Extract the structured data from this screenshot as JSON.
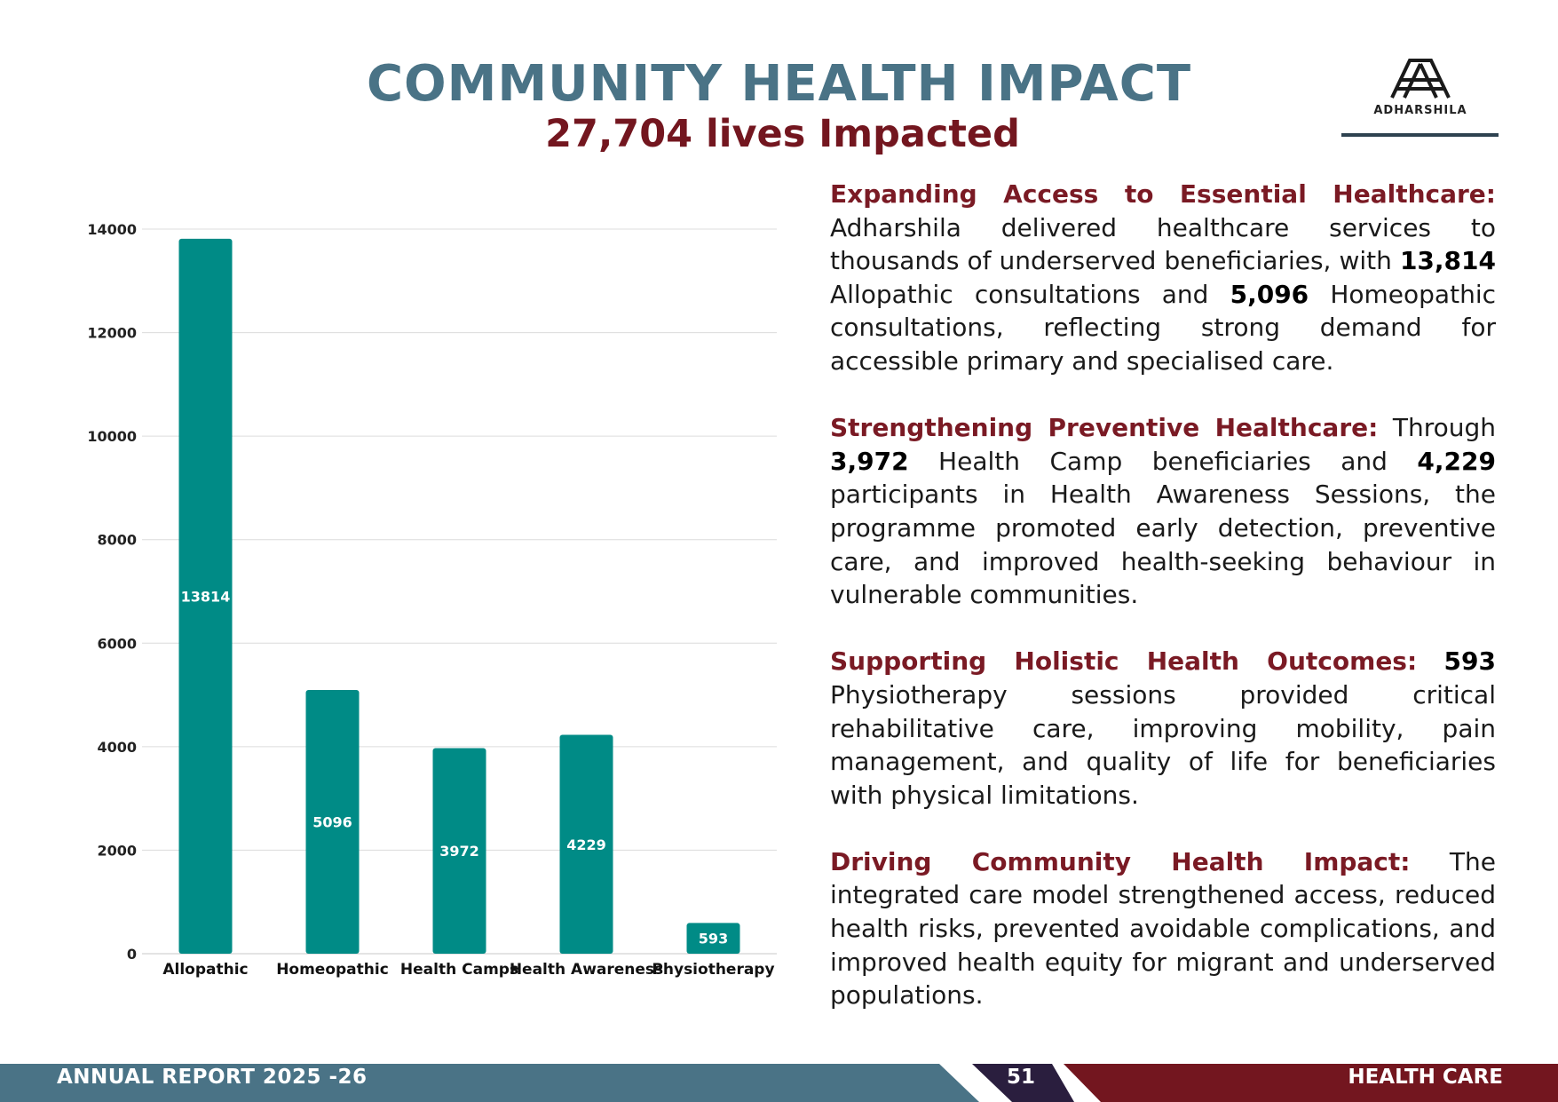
{
  "header": {
    "title": "COMMUNITY HEALTH IMPACT",
    "subtitle": "27,704 lives Impacted",
    "logo_text": "ADHARSHILA"
  },
  "chart_data": {
    "type": "bar",
    "categories": [
      "Allopathic",
      "Homeopathic",
      "Health Camps",
      "Health Awareness",
      "Physiotherapy"
    ],
    "values": [
      13814,
      5096,
      3972,
      4229,
      593
    ],
    "data_labels": [
      "13814",
      "5096",
      "3972",
      "4229",
      "593"
    ],
    "ylim": [
      0,
      14000
    ],
    "yticks": [
      "0",
      "2000",
      "4000",
      "6000",
      "8000",
      "10000",
      "12000",
      "14000"
    ],
    "grid": true,
    "bar_color": "#008b86"
  },
  "sections": [
    {
      "heading": "Expanding Access to Essential Healthcare:",
      "t1": " Adharshila delivered healthcare services to thousands of underserved beneficiaries, with ",
      "n1": "13,814",
      "t2": " Allopathic consultations and ",
      "n2": "5,096",
      "t3": " Homeopathic consultations, reflecting strong demand for accessible primary and specialised care."
    },
    {
      "heading": "Strengthening Preventive Healthcare:",
      "t1": " Through ",
      "n1": "3,972",
      "t2": " Health Camp beneficiaries and ",
      "n2": "4,229",
      "t3": " participants in Health Awareness Sessions, the programme promoted early detection, preventive care, and improved health-seeking behaviour in vulnerable communities."
    },
    {
      "heading": "Supporting Holistic Health Outcomes:",
      "t1": " ",
      "n1": "593",
      "t2": " Physiotherapy sessions provided critical rehabilitative care, improving mobility, pain management, and quality of life for beneficiaries with physical limitations."
    },
    {
      "heading": "Driving Community Health Impact:",
      "t1": " The integrated care model strengthened access, reduced health risks, prevented avoidable complications, and improved health equity for migrant and underserved populations."
    }
  ],
  "footer": {
    "left": "ANNUAL REPORT 2025 -26",
    "page": "51",
    "right": "HEALTH CARE"
  },
  "colors": {
    "title": "#4a7386",
    "accent": "#73161f",
    "footer_left": "#4a7386",
    "footer_page": "#2a1e3e",
    "footer_right": "#73161f"
  }
}
